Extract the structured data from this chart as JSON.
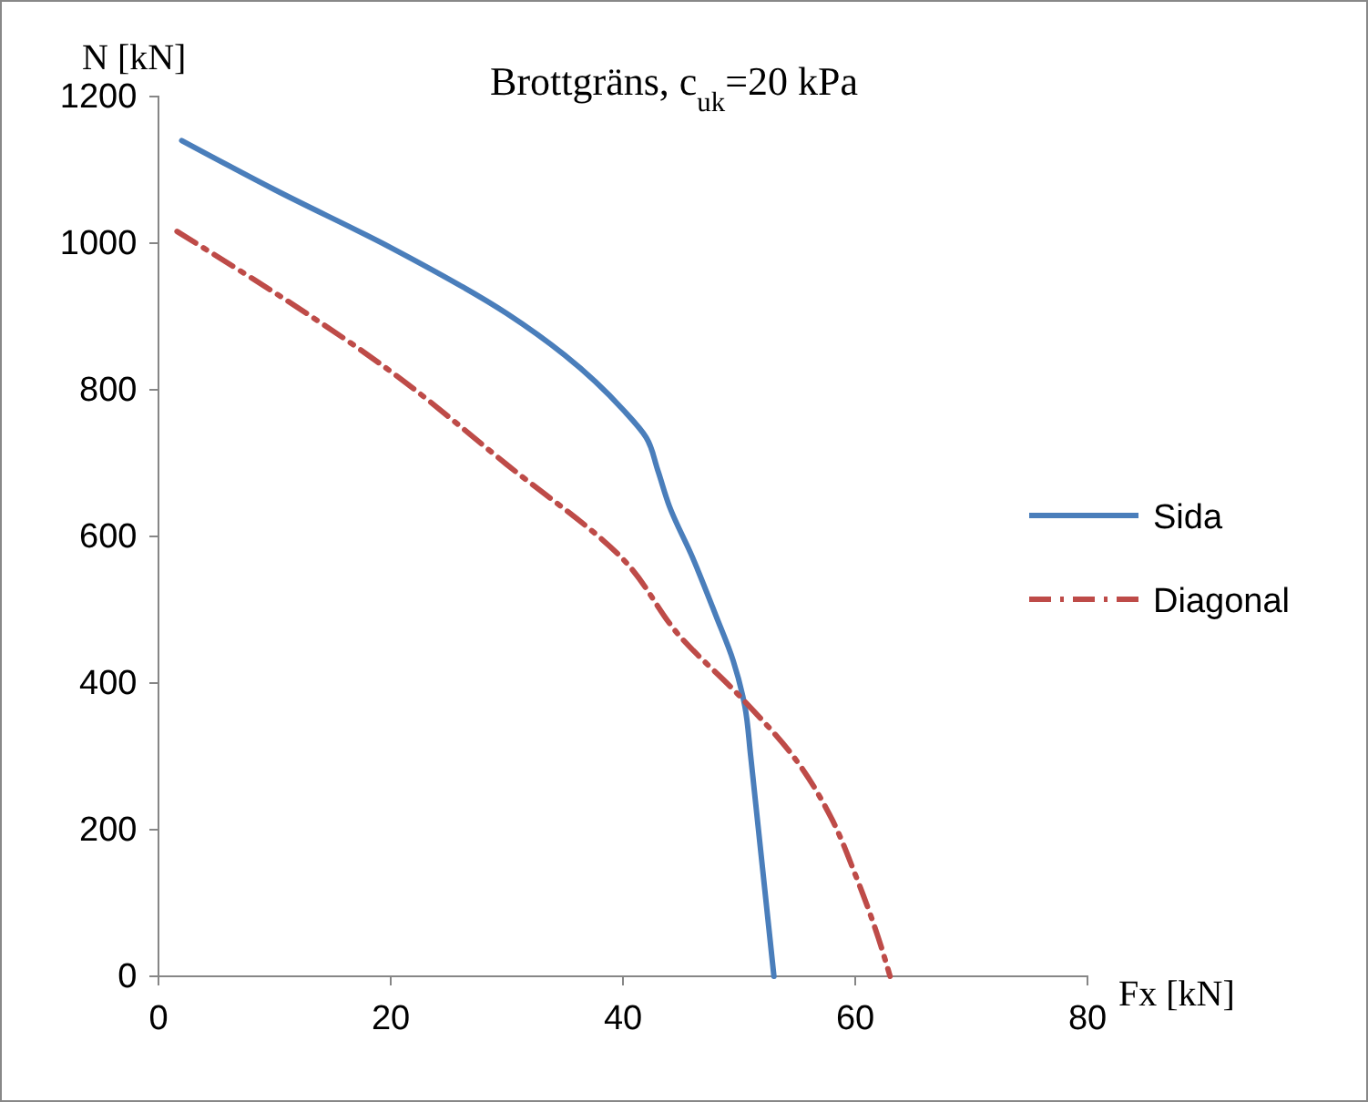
{
  "chart_data": {
    "type": "line",
    "title": "Brottgräns, c$_{uk}$=20 kPa",
    "xlabel": "Fx [kN]",
    "ylabel": "N [kN]",
    "xlim": [
      0,
      80
    ],
    "xticks": [
      0,
      20,
      40,
      60,
      80
    ],
    "ylim": [
      0,
      1200
    ],
    "yticks": [
      0,
      200,
      400,
      600,
      800,
      1000,
      1200
    ],
    "grid": false,
    "legend": "right",
    "marker": "none",
    "series": [
      {
        "name": "Sida",
        "color": "#4a7ebb",
        "line_style": "solid",
        "x": [
          2,
          10,
          20,
          30,
          35,
          40,
          42,
          43,
          44,
          46,
          48,
          49.5,
          50.5,
          51,
          53
        ],
        "values": [
          1140,
          1073,
          994,
          904,
          847,
          773,
          735,
          690,
          641,
          571,
          492,
          430,
          368,
          300,
          0
        ]
      },
      {
        "name": "Diagonal",
        "color": "#be4b48",
        "line_style": "dashdot",
        "x": [
          1.6,
          20,
          30,
          40,
          45,
          50,
          55,
          58,
          60,
          62,
          63
        ],
        "values": [
          1016,
          825,
          698,
          569,
          462,
          383,
          293,
          214,
          139,
          52,
          0
        ]
      }
    ]
  }
}
